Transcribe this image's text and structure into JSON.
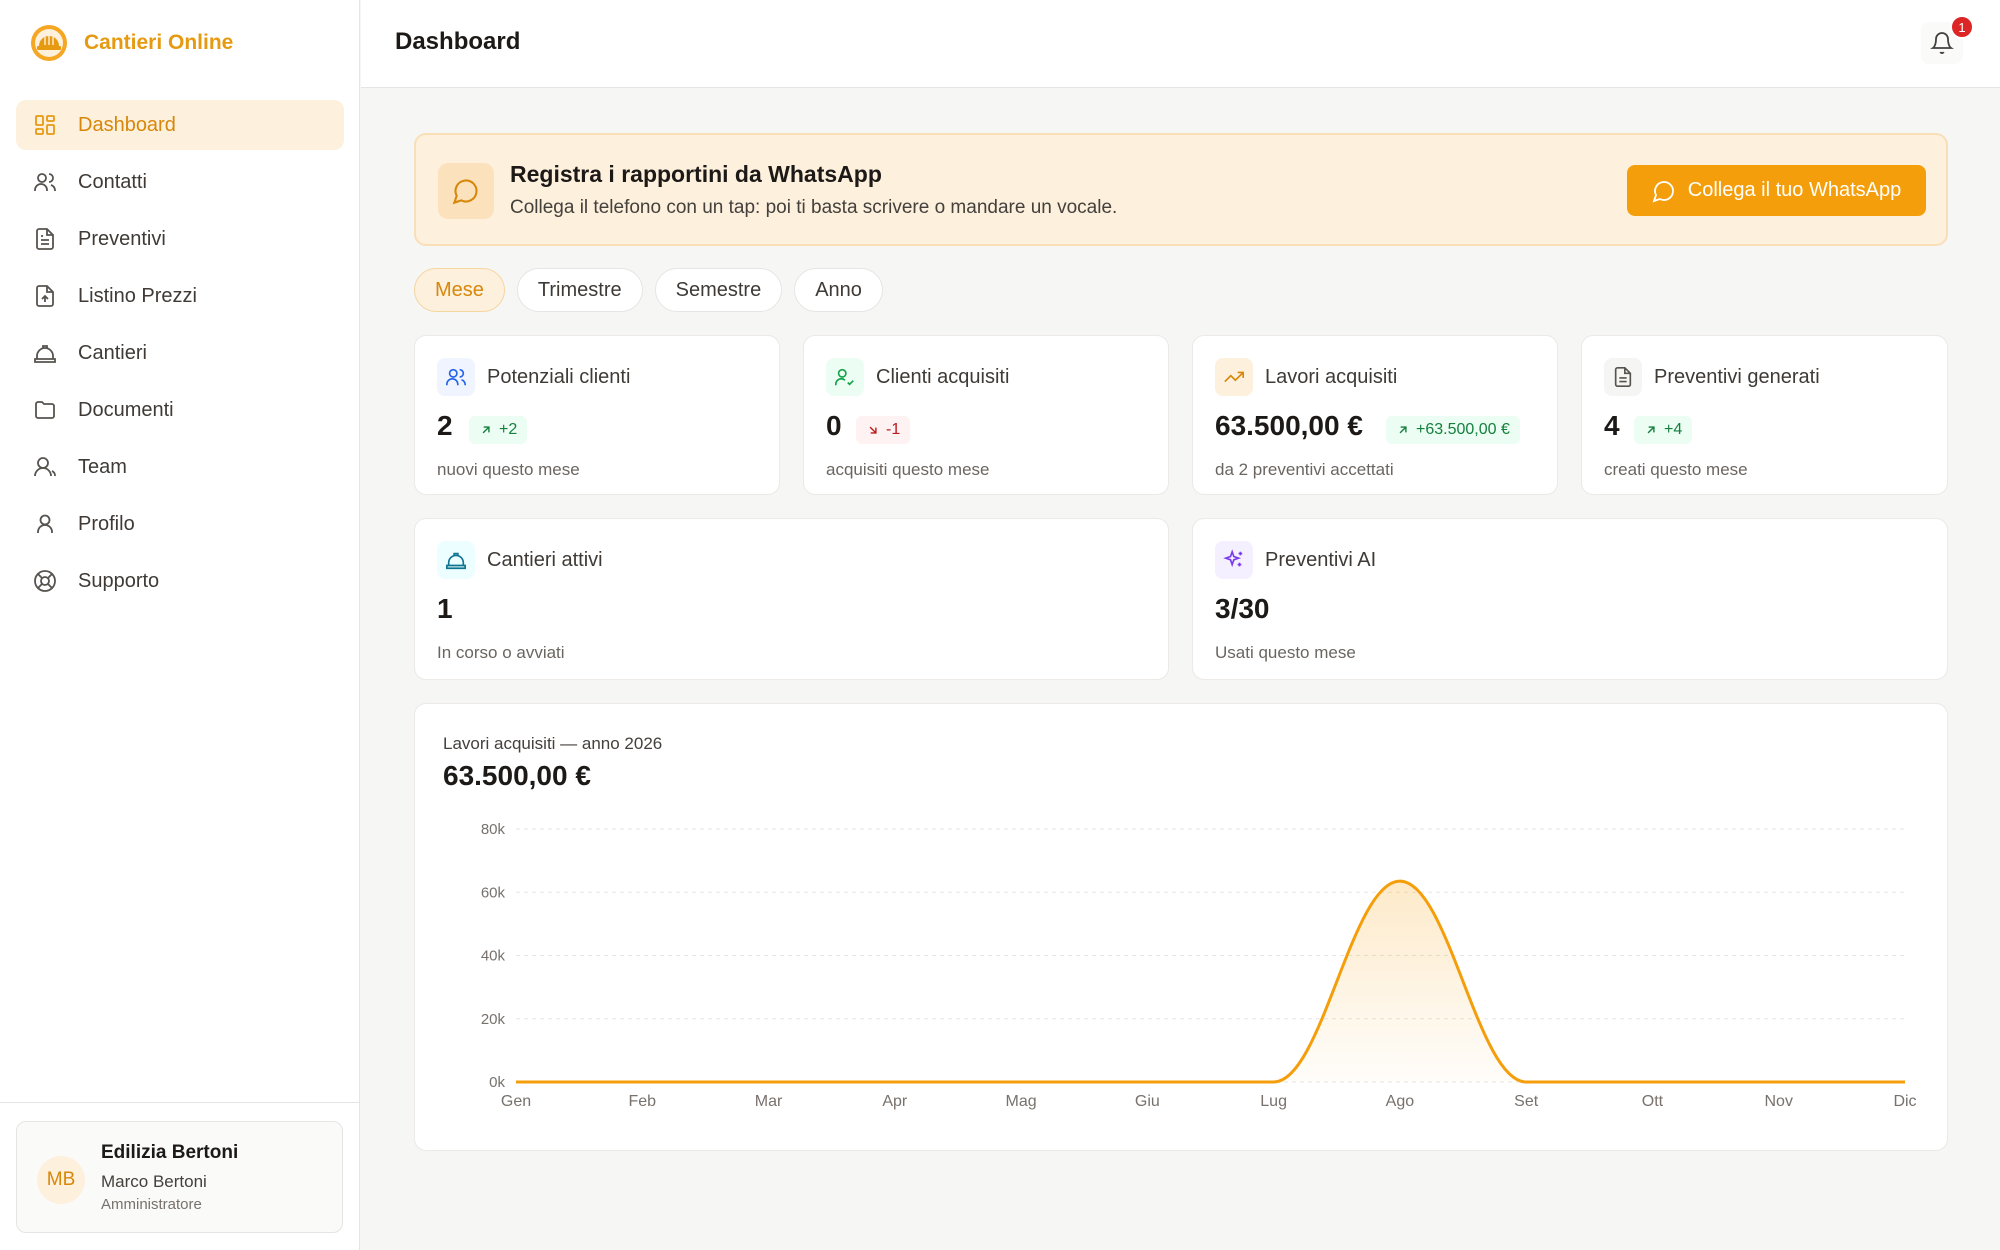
{
  "brand": {
    "name": "Cantieri Online"
  },
  "sidebar": {
    "items": [
      {
        "label": "Dashboard",
        "icon": "dashboard-icon",
        "active": true
      },
      {
        "label": "Contatti",
        "icon": "users-icon"
      },
      {
        "label": "Preventivi",
        "icon": "document-icon"
      },
      {
        "label": "Listino Prezzi",
        "icon": "file-upload-icon"
      },
      {
        "label": "Cantieri",
        "icon": "hard-hat-icon"
      },
      {
        "label": "Documenti",
        "icon": "folder-icon"
      },
      {
        "label": "Team",
        "icon": "team-icon"
      },
      {
        "label": "Profilo",
        "icon": "user-icon"
      },
      {
        "label": "Supporto",
        "icon": "lifebuoy-icon"
      }
    ]
  },
  "user": {
    "initials": "MB",
    "company": "Edilizia Bertoni",
    "name": "Marco Bertoni",
    "role": "Amministratore"
  },
  "header": {
    "title": "Dashboard",
    "notification_count": "1"
  },
  "banner": {
    "title": "Registra i rapportini da WhatsApp",
    "subtitle": "Collega il telefono con un tap: poi ti basta scrivere o mandare un vocale.",
    "button_label": "Collega il tuo WhatsApp"
  },
  "tabs": [
    {
      "label": "Mese",
      "active": true
    },
    {
      "label": "Trimestre"
    },
    {
      "label": "Semestre"
    },
    {
      "label": "Anno"
    }
  ],
  "stats": {
    "potenziali": {
      "title": "Potenziali clienti",
      "value": "2",
      "delta": "+2",
      "sub": "nuovi questo mese"
    },
    "acquisiti": {
      "title": "Clienti acquisiti",
      "value": "0",
      "delta": "-1",
      "sub": "acquisiti questo mese"
    },
    "lavori": {
      "title": "Lavori acquisiti",
      "value": "63.500,00 €",
      "delta": "+63.500,00 €",
      "sub": "da 2 preventivi accettati"
    },
    "preventivi": {
      "title": "Preventivi generati",
      "value": "4",
      "delta": "+4",
      "sub": "creati questo mese"
    },
    "cantieri": {
      "title": "Cantieri attivi",
      "value": "1",
      "sub": "In corso o avviati"
    },
    "ai": {
      "title": "Preventivi AI",
      "value": "3/30",
      "sub": "Usati questo mese"
    }
  },
  "colors": {
    "accent": "#f59e0b",
    "accent_text": "#d7870a",
    "up": "#15803d",
    "down": "#b91c1c"
  },
  "chart": {
    "subtitle": "Lavori acquisiti — anno 2026",
    "total": "63.500,00 €"
  },
  "chart_data": {
    "type": "area",
    "title": "Lavori acquisiti — anno 2026",
    "categories": [
      "Gen",
      "Feb",
      "Mar",
      "Apr",
      "Mag",
      "Giu",
      "Lug",
      "Ago",
      "Set",
      "Ott",
      "Nov",
      "Dic"
    ],
    "values": [
      0,
      0,
      0,
      0,
      0,
      0,
      0,
      63500,
      0,
      0,
      0,
      0
    ],
    "yticks": [
      "0k",
      "20k",
      "40k",
      "60k",
      "80k"
    ],
    "ylim": [
      0,
      80000
    ],
    "grid": true,
    "color": "#f59e0b"
  }
}
